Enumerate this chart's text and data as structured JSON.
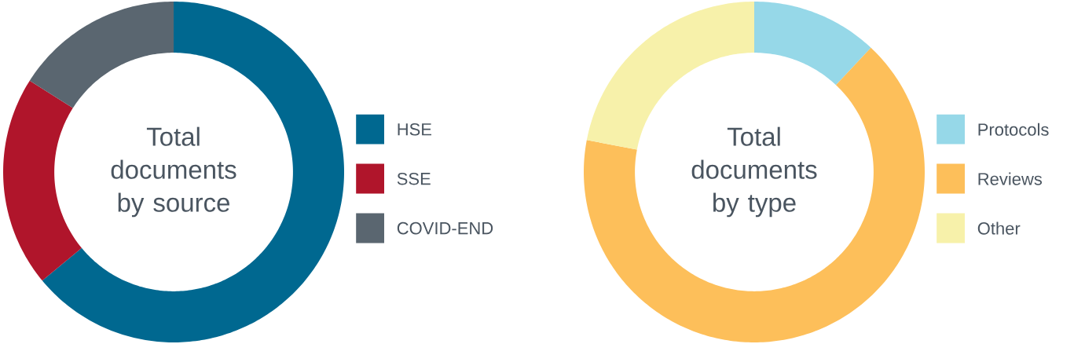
{
  "chart_data": [
    {
      "type": "donut",
      "title": "Total documents by source",
      "categories": [
        "HSE",
        "SSE",
        "COVID-END"
      ],
      "values": [
        64,
        20,
        16
      ],
      "colors": [
        "#006890",
        "#b0152b",
        "#5a6670"
      ],
      "legend": "right"
    },
    {
      "type": "donut",
      "title": "Total documents by type",
      "categories": [
        "Protocols",
        "Reviews",
        "Other"
      ],
      "values": [
        12,
        66,
        22
      ],
      "colors": [
        "#96d8e8",
        "#fdbf5a",
        "#f7f1aa"
      ],
      "legend": "right"
    }
  ]
}
